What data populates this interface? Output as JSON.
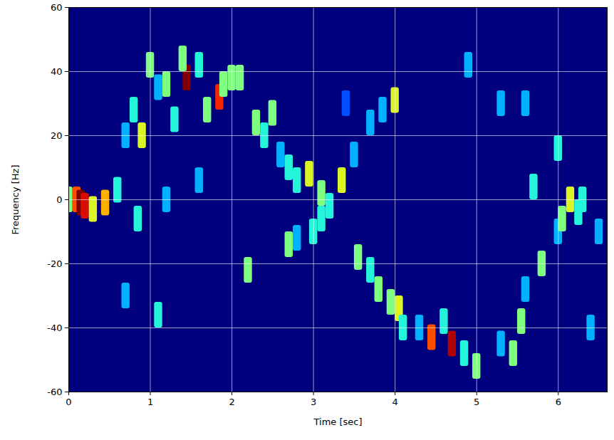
{
  "chart_data": {
    "type": "heatmap",
    "x_label": "Time [sec]",
    "y_label": "Frequency [Hz]",
    "xlim": [
      0,
      6.6
    ],
    "xticks": [
      0,
      1,
      2,
      3,
      4,
      5,
      6
    ],
    "ylim": [
      -60,
      60
    ],
    "yticks": [
      -60,
      -40,
      -20,
      0,
      20,
      40,
      60
    ],
    "grid": true,
    "zlim": [
      0,
      1
    ],
    "cell_width": 0.1,
    "cell_height": 8,
    "cells": [
      [
        0.0,
        0,
        0.5
      ],
      [
        0.1,
        0,
        0.8
      ],
      [
        0.15,
        -1,
        1.0
      ],
      [
        0.2,
        -2,
        0.9
      ],
      [
        0.3,
        -3,
        0.6
      ],
      [
        0.45,
        -1,
        0.7
      ],
      [
        0.6,
        3,
        0.4
      ],
      [
        0.7,
        20,
        0.3
      ],
      [
        0.8,
        28,
        0.4
      ],
      [
        0.9,
        20,
        0.6
      ],
      [
        1.0,
        42,
        0.5
      ],
      [
        1.1,
        35,
        0.3
      ],
      [
        1.2,
        36,
        0.5
      ],
      [
        1.3,
        25,
        0.4
      ],
      [
        1.45,
        38,
        1.0
      ],
      [
        1.4,
        44,
        0.5
      ],
      [
        1.6,
        42,
        0.4
      ],
      [
        1.7,
        28,
        0.5
      ],
      [
        1.85,
        32,
        0.85
      ],
      [
        1.9,
        36,
        0.5
      ],
      [
        2.0,
        38,
        0.5
      ],
      [
        2.1,
        38,
        0.5
      ],
      [
        2.3,
        24,
        0.5
      ],
      [
        2.4,
        20,
        0.4
      ],
      [
        2.5,
        27,
        0.5
      ],
      [
        2.6,
        14,
        0.3
      ],
      [
        2.7,
        10,
        0.4
      ],
      [
        2.8,
        6,
        0.4
      ],
      [
        2.95,
        8,
        0.6
      ],
      [
        3.1,
        2,
        0.5
      ],
      [
        3.2,
        -2,
        0.4
      ],
      [
        3.35,
        6,
        0.6
      ],
      [
        3.5,
        14,
        0.3
      ],
      [
        3.7,
        24,
        0.3
      ],
      [
        3.85,
        28,
        0.3
      ],
      [
        4.0,
        31,
        0.6
      ],
      [
        2.7,
        -14,
        0.5
      ],
      [
        2.8,
        -12,
        0.3
      ],
      [
        2.2,
        -22,
        0.5
      ],
      [
        3.0,
        -10,
        0.4
      ],
      [
        3.1,
        -6,
        0.4
      ],
      [
        3.55,
        -18,
        0.5
      ],
      [
        3.7,
        -22,
        0.4
      ],
      [
        3.8,
        -28,
        0.5
      ],
      [
        3.95,
        -32,
        0.5
      ],
      [
        4.05,
        -34,
        0.6
      ],
      [
        4.1,
        -40,
        0.4
      ],
      [
        4.3,
        -40,
        0.3
      ],
      [
        4.45,
        -43,
        0.8
      ],
      [
        4.6,
        -38,
        0.4
      ],
      [
        4.7,
        -45,
        0.95
      ],
      [
        4.85,
        -48,
        0.4
      ],
      [
        5.0,
        -52,
        0.5
      ],
      [
        5.3,
        -45,
        0.3
      ],
      [
        5.45,
        -48,
        0.5
      ],
      [
        5.55,
        -38,
        0.5
      ],
      [
        5.6,
        -28,
        0.3
      ],
      [
        5.8,
        -20,
        0.5
      ],
      [
        5.7,
        4,
        0.4
      ],
      [
        6.0,
        -10,
        0.3
      ],
      [
        6.05,
        -6,
        0.5
      ],
      [
        6.15,
        0,
        0.6
      ],
      [
        6.25,
        -4,
        0.4
      ],
      [
        6.0,
        16,
        0.4
      ],
      [
        6.3,
        0,
        0.4
      ],
      [
        6.5,
        -10,
        0.3
      ],
      [
        4.9,
        42,
        0.3
      ],
      [
        5.3,
        30,
        0.3
      ],
      [
        5.6,
        30,
        0.3
      ],
      [
        1.1,
        -36,
        0.4
      ],
      [
        0.7,
        -30,
        0.3
      ],
      [
        0.85,
        -6,
        0.4
      ],
      [
        1.2,
        0,
        0.3
      ],
      [
        1.6,
        6,
        0.3
      ],
      [
        6.4,
        -40,
        0.3
      ],
      [
        3.4,
        30,
        0.2
      ]
    ]
  }
}
